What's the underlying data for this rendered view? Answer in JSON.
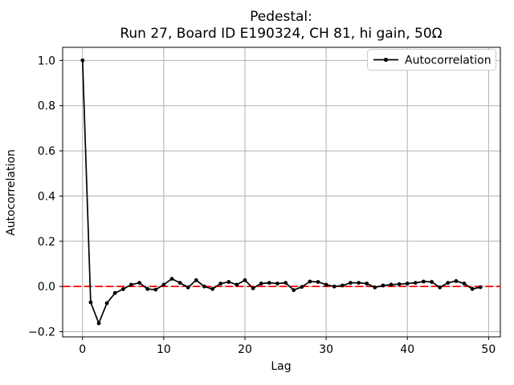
{
  "figure": {
    "background": "#ffffff",
    "title_line1": "Pedestal:",
    "title_line2": "Run 27, Board ID E190324, CH 81, hi gain, 50Ω"
  },
  "chart_data": {
    "type": "line",
    "title": "Pedestal:\nRun 27, Board ID E190324, CH 81, hi gain, 50Ω",
    "xlabel": "Lag",
    "ylabel": "Autocorrelation",
    "xlim": [
      -2.45,
      51.45
    ],
    "ylim": [
      -0.223,
      1.058
    ],
    "xticks": [
      0,
      10,
      20,
      30,
      40,
      50
    ],
    "yticks": [
      -0.2,
      0.0,
      0.2,
      0.4,
      0.6,
      0.8,
      1.0
    ],
    "grid": true,
    "grid_color": "#b0b0b0",
    "spine_color": "#000000",
    "zero_line": {
      "y": 0,
      "color": "#ff0000",
      "style": "dashed"
    },
    "legend": {
      "position": "upper right",
      "entries": [
        {
          "label": "Autocorrelation",
          "color": "#000000",
          "marker": "dot"
        }
      ]
    },
    "series": [
      {
        "name": "Autocorrelation",
        "color": "#000000",
        "marker": "point",
        "x": [
          0,
          1,
          2,
          3,
          4,
          5,
          6,
          7,
          8,
          9,
          10,
          11,
          12,
          13,
          14,
          15,
          16,
          17,
          18,
          19,
          20,
          21,
          22,
          23,
          24,
          25,
          26,
          27,
          28,
          29,
          30,
          31,
          32,
          33,
          34,
          35,
          36,
          37,
          38,
          39,
          40,
          41,
          42,
          43,
          44,
          45,
          46,
          47,
          48,
          49
        ],
        "y": [
          1.0,
          -0.07,
          -0.163,
          -0.074,
          -0.029,
          -0.012,
          0.008,
          0.016,
          -0.011,
          -0.014,
          0.008,
          0.034,
          0.016,
          -0.004,
          0.028,
          0.0,
          -0.011,
          0.013,
          0.02,
          0.008,
          0.028,
          -0.008,
          0.013,
          0.016,
          0.013,
          0.016,
          -0.016,
          -0.002,
          0.022,
          0.02,
          0.008,
          0.0,
          0.004,
          0.016,
          0.016,
          0.013,
          -0.004,
          0.004,
          0.008,
          0.01,
          0.013,
          0.016,
          0.022,
          0.02,
          -0.004,
          0.016,
          0.024,
          0.013,
          -0.011,
          -0.003
        ]
      }
    ]
  }
}
